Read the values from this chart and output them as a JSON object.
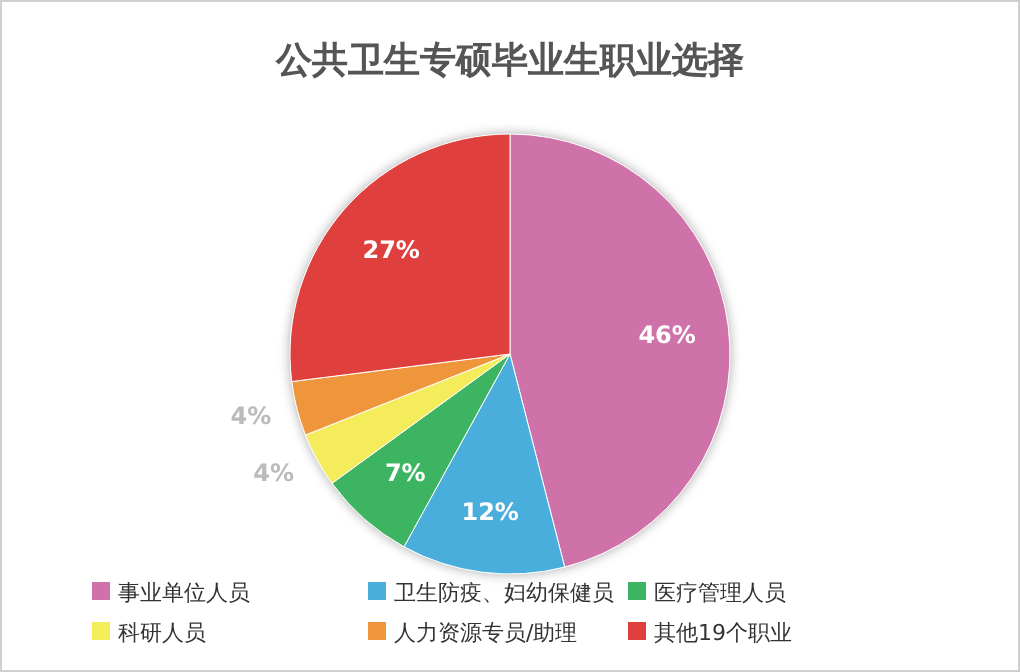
{
  "chart_data": {
    "type": "pie",
    "title": "公共卫生专硕毕业生职业选择",
    "categories": [
      "事业单位人员",
      "卫生防疫、妇幼保健员",
      "医疗管理人员",
      "科研人员",
      "人力资源专员/助理",
      "其他19个职业"
    ],
    "values": [
      46,
      12,
      7,
      4,
      4,
      27
    ],
    "colors": [
      "#d072aa",
      "#4aaedd",
      "#3db461",
      "#f5ec5b",
      "#ef953b",
      "#df403d"
    ],
    "value_labels": [
      "46%",
      "12%",
      "7%",
      "4%",
      "4%",
      "27%"
    ],
    "legend": "bottom"
  }
}
